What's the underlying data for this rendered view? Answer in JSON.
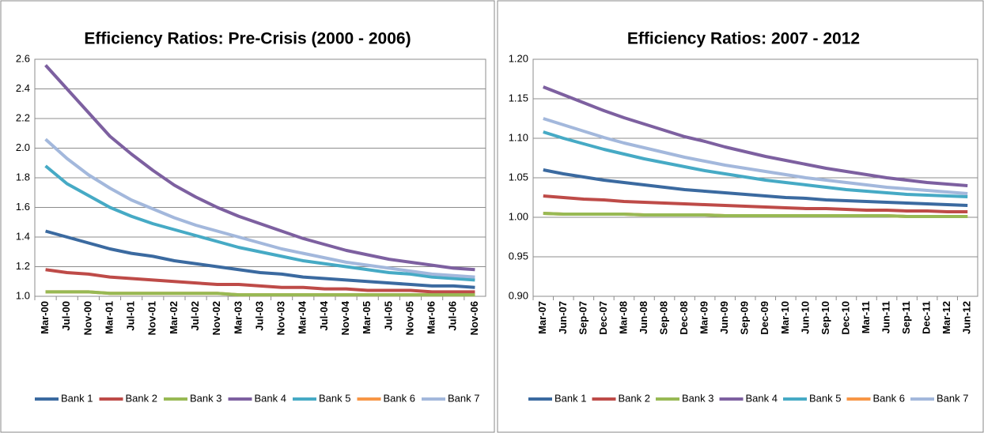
{
  "chart_data": [
    {
      "type": "line",
      "title": "Efficiency Ratios: Pre-Crisis (2000 -  2006)",
      "categories": [
        "Mar-00",
        "Jul-00",
        "Nov-00",
        "Mar-01",
        "Jul-01",
        "Nov-01",
        "Mar-02",
        "Jul-02",
        "Nov-02",
        "Mar-03",
        "Jul-03",
        "Nov-03",
        "Mar-04",
        "Jul-04",
        "Nov-04",
        "Mar-05",
        "Jul-05",
        "Nov-05",
        "Mar-06",
        "Jul-06",
        "Nov-06"
      ],
      "ylim": [
        1.0,
        2.6
      ],
      "yticks": [
        {
          "value": 1.0,
          "label": "1.0"
        },
        1.2,
        1.4,
        1.6,
        1.8,
        {
          "value": 2.0,
          "label": "2.0"
        },
        2.2,
        2.4,
        2.6
      ],
      "grid": true,
      "series": [
        {
          "name": "Bank 1",
          "color": "#3b6aa0",
          "values": [
            1.44,
            1.4,
            1.36,
            1.32,
            1.29,
            1.27,
            1.24,
            1.22,
            1.2,
            1.18,
            1.16,
            1.15,
            1.13,
            1.12,
            1.11,
            1.1,
            1.09,
            1.08,
            1.07,
            1.07,
            1.06
          ]
        },
        {
          "name": "Bank 2",
          "color": "#be4b48",
          "values": [
            1.18,
            1.16,
            1.15,
            1.13,
            1.12,
            1.11,
            1.1,
            1.09,
            1.08,
            1.08,
            1.07,
            1.06,
            1.06,
            1.05,
            1.05,
            1.04,
            1.04,
            1.04,
            1.03,
            1.03,
            1.03
          ]
        },
        {
          "name": "Bank 3",
          "color": "#98b954",
          "values": [
            1.03,
            1.03,
            1.03,
            1.02,
            1.02,
            1.02,
            1.02,
            1.02,
            1.02,
            1.01,
            1.01,
            1.01,
            1.01,
            1.01,
            1.01,
            1.01,
            1.01,
            1.01,
            1.01,
            1.01,
            1.01
          ]
        },
        {
          "name": "Bank 4",
          "color": "#7d60a0",
          "values": [
            2.56,
            2.4,
            2.24,
            2.08,
            1.96,
            1.85,
            1.75,
            1.67,
            1.6,
            1.54,
            1.49,
            1.44,
            1.39,
            1.35,
            1.31,
            1.28,
            1.25,
            1.23,
            1.21,
            1.19,
            1.18
          ]
        },
        {
          "name": "Bank 5",
          "color": "#46aac5",
          "values": [
            1.88,
            1.76,
            1.68,
            1.6,
            1.54,
            1.49,
            1.45,
            1.41,
            1.37,
            1.33,
            1.3,
            1.27,
            1.24,
            1.22,
            1.2,
            1.18,
            1.16,
            1.15,
            1.13,
            1.12,
            1.11
          ]
        },
        {
          "name": "Bank 6",
          "color": "#f79646",
          "values": [
            1.03,
            1.03,
            1.03,
            1.02,
            1.02,
            1.02,
            1.02,
            1.02,
            1.02,
            1.01,
            1.01,
            1.01,
            1.01,
            1.01,
            1.01,
            1.01,
            1.01,
            1.01,
            1.01,
            1.01,
            1.01
          ]
        },
        {
          "name": "Bank 7",
          "color": "#a3b8dc",
          "values": [
            2.06,
            1.93,
            1.82,
            1.73,
            1.65,
            1.59,
            1.53,
            1.48,
            1.44,
            1.4,
            1.36,
            1.32,
            1.29,
            1.26,
            1.23,
            1.21,
            1.19,
            1.17,
            1.15,
            1.14,
            1.13
          ]
        }
      ]
    },
    {
      "type": "line",
      "title": "Efficiency Ratios: 2007 - 2012",
      "categories": [
        "Mar-07",
        "Jun-07",
        "Sep-07",
        "Dec-07",
        "Mar-08",
        "Jun-08",
        "Sep-08",
        "Dec-08",
        "Mar-09",
        "Jun-09",
        "Sep-09",
        "Dec-09",
        "Mar-10",
        "Jun-10",
        "Sep-10",
        "Dec-10",
        "Mar-11",
        "Jun-11",
        "Sep-11",
        "Dec-11",
        "Mar-12",
        "Jun-12"
      ],
      "ylim": [
        0.9,
        1.2
      ],
      "yticks": [
        {
          "value": 0.9,
          "label": "0.90"
        },
        0.95,
        {
          "value": 1.0,
          "label": "1.00"
        },
        1.05,
        {
          "value": 1.1,
          "label": "1.10"
        },
        1.15,
        {
          "value": 1.2,
          "label": "1.20"
        }
      ],
      "grid": true,
      "series": [
        {
          "name": "Bank 1",
          "color": "#3b6aa0",
          "values": [
            1.06,
            1.055,
            1.051,
            1.047,
            1.044,
            1.041,
            1.038,
            1.035,
            1.033,
            1.031,
            1.029,
            1.027,
            1.025,
            1.024,
            1.022,
            1.021,
            1.02,
            1.019,
            1.018,
            1.017,
            1.016,
            1.015
          ]
        },
        {
          "name": "Bank 2",
          "color": "#be4b48",
          "values": [
            1.027,
            1.025,
            1.023,
            1.022,
            1.02,
            1.019,
            1.018,
            1.017,
            1.016,
            1.015,
            1.014,
            1.013,
            1.012,
            1.011,
            1.011,
            1.01,
            1.009,
            1.009,
            1.008,
            1.008,
            1.007,
            1.007
          ]
        },
        {
          "name": "Bank 3",
          "color": "#98b954",
          "values": [
            1.005,
            1.004,
            1.004,
            1.004,
            1.004,
            1.003,
            1.003,
            1.003,
            1.003,
            1.002,
            1.002,
            1.002,
            1.002,
            1.002,
            1.002,
            1.002,
            1.002,
            1.002,
            1.001,
            1.001,
            1.001,
            1.001
          ]
        },
        {
          "name": "Bank 4",
          "color": "#7d60a0",
          "values": [
            1.165,
            1.155,
            1.145,
            1.135,
            1.126,
            1.118,
            1.11,
            1.102,
            1.096,
            1.089,
            1.083,
            1.077,
            1.072,
            1.067,
            1.062,
            1.058,
            1.054,
            1.05,
            1.047,
            1.044,
            1.042,
            1.04
          ]
        },
        {
          "name": "Bank 5",
          "color": "#46aac5",
          "values": [
            1.108,
            1.1,
            1.093,
            1.086,
            1.08,
            1.074,
            1.069,
            1.064,
            1.059,
            1.055,
            1.051,
            1.047,
            1.044,
            1.041,
            1.038,
            1.035,
            1.033,
            1.031,
            1.029,
            1.028,
            1.027,
            1.026
          ]
        },
        {
          "name": "Bank 6",
          "color": "#f79646",
          "values": [
            1.005,
            1.004,
            1.004,
            1.004,
            1.004,
            1.003,
            1.003,
            1.003,
            1.003,
            1.002,
            1.002,
            1.002,
            1.002,
            1.002,
            1.002,
            1.002,
            1.002,
            1.002,
            1.001,
            1.001,
            1.001,
            1.001
          ]
        },
        {
          "name": "Bank 7",
          "color": "#a3b8dc",
          "values": [
            1.125,
            1.117,
            1.109,
            1.101,
            1.094,
            1.088,
            1.082,
            1.076,
            1.071,
            1.066,
            1.062,
            1.058,
            1.054,
            1.05,
            1.047,
            1.044,
            1.041,
            1.038,
            1.036,
            1.034,
            1.032,
            1.03
          ]
        }
      ]
    }
  ]
}
